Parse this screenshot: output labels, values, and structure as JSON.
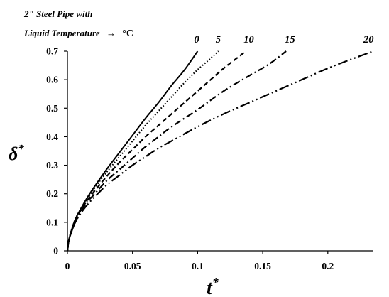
{
  "chart_data": {
    "type": "line",
    "annotation_line1": "2\" Steel Pipe with",
    "annotation_line2_text": "Liquid Temperature",
    "annotation_line2_arrow": "→",
    "annotation_line2_unit": "°C",
    "xlabel": "t",
    "xlabel_sup": "*",
    "ylabel": "δ",
    "ylabel_sup": "*",
    "xlim": [
      0,
      0.235
    ],
    "ylim": [
      0,
      0.7
    ],
    "x_ticks": [
      0,
      0.05,
      0.1,
      0.15,
      0.2
    ],
    "x_tick_labels": [
      "0",
      "0.05",
      "0.1",
      "0.15",
      "0.2"
    ],
    "y_ticks": [
      0,
      0.1,
      0.2,
      0.3,
      0.4,
      0.5,
      0.6,
      0.7
    ],
    "y_tick_labels": [
      "0",
      "0.1",
      "0.2",
      "0.3",
      "0.4",
      "0.5",
      "0.6",
      "0.7"
    ],
    "grid": false,
    "legend": "labels at curve ends",
    "series": [
      {
        "name": "0",
        "style": "solid",
        "points": [
          [
            0,
            0
          ],
          [
            0.001,
            0.035
          ],
          [
            0.003,
            0.07
          ],
          [
            0.006,
            0.11
          ],
          [
            0.01,
            0.145
          ],
          [
            0.015,
            0.185
          ],
          [
            0.02,
            0.22
          ],
          [
            0.03,
            0.285
          ],
          [
            0.04,
            0.345
          ],
          [
            0.05,
            0.405
          ],
          [
            0.06,
            0.465
          ],
          [
            0.07,
            0.52
          ],
          [
            0.08,
            0.58
          ],
          [
            0.09,
            0.635
          ],
          [
            0.1,
            0.7
          ]
        ]
      },
      {
        "name": "5",
        "style": "dotted",
        "points": [
          [
            0,
            0
          ],
          [
            0.001,
            0.035
          ],
          [
            0.003,
            0.07
          ],
          [
            0.006,
            0.11
          ],
          [
            0.01,
            0.145
          ],
          [
            0.015,
            0.18
          ],
          [
            0.02,
            0.215
          ],
          [
            0.03,
            0.275
          ],
          [
            0.04,
            0.33
          ],
          [
            0.05,
            0.385
          ],
          [
            0.06,
            0.44
          ],
          [
            0.07,
            0.49
          ],
          [
            0.08,
            0.54
          ],
          [
            0.09,
            0.59
          ],
          [
            0.1,
            0.635
          ],
          [
            0.11,
            0.675
          ],
          [
            0.116,
            0.7
          ]
        ]
      },
      {
        "name": "10",
        "style": "dashed",
        "points": [
          [
            0,
            0
          ],
          [
            0.001,
            0.035
          ],
          [
            0.003,
            0.07
          ],
          [
            0.006,
            0.105
          ],
          [
            0.01,
            0.14
          ],
          [
            0.015,
            0.175
          ],
          [
            0.02,
            0.205
          ],
          [
            0.03,
            0.26
          ],
          [
            0.04,
            0.31
          ],
          [
            0.05,
            0.355
          ],
          [
            0.06,
            0.4
          ],
          [
            0.07,
            0.44
          ],
          [
            0.08,
            0.48
          ],
          [
            0.09,
            0.52
          ],
          [
            0.1,
            0.56
          ],
          [
            0.11,
            0.6
          ],
          [
            0.12,
            0.64
          ],
          [
            0.13,
            0.675
          ],
          [
            0.137,
            0.7
          ]
        ]
      },
      {
        "name": "15",
        "style": "dash-dot",
        "points": [
          [
            0,
            0
          ],
          [
            0.001,
            0.035
          ],
          [
            0.003,
            0.065
          ],
          [
            0.006,
            0.1
          ],
          [
            0.01,
            0.135
          ],
          [
            0.015,
            0.17
          ],
          [
            0.02,
            0.195
          ],
          [
            0.03,
            0.245
          ],
          [
            0.04,
            0.285
          ],
          [
            0.05,
            0.325
          ],
          [
            0.06,
            0.365
          ],
          [
            0.07,
            0.4
          ],
          [
            0.08,
            0.435
          ],
          [
            0.1,
            0.495
          ],
          [
            0.12,
            0.56
          ],
          [
            0.14,
            0.615
          ],
          [
            0.155,
            0.655
          ],
          [
            0.168,
            0.7
          ]
        ]
      },
      {
        "name": "20",
        "style": "dash-dot-dot",
        "points": [
          [
            0,
            0
          ],
          [
            0.001,
            0.035
          ],
          [
            0.003,
            0.065
          ],
          [
            0.006,
            0.1
          ],
          [
            0.01,
            0.13
          ],
          [
            0.015,
            0.16
          ],
          [
            0.02,
            0.185
          ],
          [
            0.03,
            0.23
          ],
          [
            0.04,
            0.265
          ],
          [
            0.05,
            0.3
          ],
          [
            0.06,
            0.33
          ],
          [
            0.07,
            0.36
          ],
          [
            0.08,
            0.385
          ],
          [
            0.1,
            0.435
          ],
          [
            0.12,
            0.48
          ],
          [
            0.14,
            0.52
          ],
          [
            0.16,
            0.56
          ],
          [
            0.18,
            0.6
          ],
          [
            0.2,
            0.64
          ],
          [
            0.22,
            0.675
          ],
          [
            0.235,
            0.7
          ]
        ]
      }
    ]
  }
}
